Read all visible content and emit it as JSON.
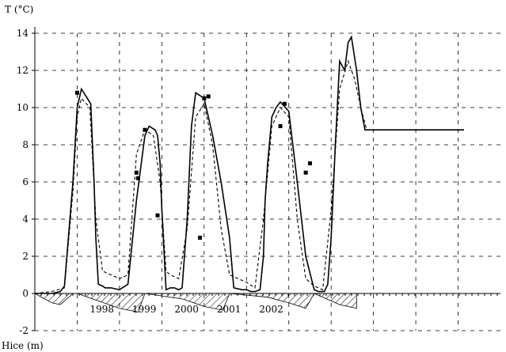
{
  "chart_data": {
    "type": "line",
    "title": "",
    "ylabel": "T  (°C)",
    "xlabel": "",
    "secondary_ylabel": "Hice (m)",
    "ylim": [
      -2,
      14
    ],
    "xlim": [
      1997.0,
      2002.5
    ],
    "yticks": [
      -2,
      0,
      2,
      4,
      6,
      8,
      10,
      12,
      14
    ],
    "ytick_labels": [
      "-2",
      "0",
      "2",
      "4",
      "6",
      "8",
      "10",
      "12",
      "14"
    ],
    "x_tick_labels": [
      "1998",
      "1999",
      "2000",
      "2001",
      "2002"
    ],
    "grid": true,
    "legend": "none",
    "series": [
      {
        "style": "solid",
        "x": [
          1997.0,
          1997.1,
          1997.2,
          1997.3,
          1997.35,
          1997.45,
          1997.5,
          1997.55,
          1997.62,
          1997.66,
          1997.7,
          1997.72,
          1997.75,
          1997.8,
          1997.83,
          1997.9,
          1998.0,
          1998.1,
          1998.2,
          1998.3,
          1998.35,
          1998.42,
          1998.45,
          1998.48,
          1998.5,
          1998.55,
          1998.6,
          1998.65,
          1998.7,
          1998.74,
          1998.8,
          1998.85,
          1998.9,
          1999.0,
          1999.1,
          1999.2,
          1999.3,
          1999.35,
          1999.45,
          1999.5,
          1999.55,
          1999.6,
          1999.66,
          1999.7,
          1999.72,
          1999.75,
          1999.8,
          1999.85,
          1999.9,
          2000.0,
          2000.1,
          2000.2,
          2000.3,
          2000.35,
          2000.42,
          2000.46,
          2000.5,
          2000.55,
          2000.6,
          2000.66,
          2000.7,
          2000.74,
          2000.8,
          2000.85,
          2000.9,
          2001.0,
          2001.1,
          2001.2,
          2001.3,
          2001.35,
          2001.45,
          2001.5,
          2001.55,
          2001.6,
          2001.66,
          2001.7,
          2001.74,
          2001.8,
          2001.85,
          2001.9,
          2002.0,
          2002.07
        ],
        "y": [
          0.0,
          0.0,
          0.0,
          0.1,
          0.4,
          6.0,
          10.0,
          11.0,
          10.5,
          10.2,
          6.0,
          3.0,
          0.5,
          0.4,
          0.3,
          0.3,
          0.2,
          0.5,
          5.0,
          8.5,
          9.0,
          8.8,
          8.5,
          7.0,
          4.5,
          0.2,
          0.3,
          0.3,
          0.2,
          0.3,
          4.0,
          9.0,
          10.8,
          10.5,
          8.5,
          6.0,
          3.0,
          0.3,
          0.2,
          0.2,
          0.1,
          0.1,
          0.2,
          2.0,
          5.0,
          7.0,
          9.5,
          10.0,
          10.3,
          9.8,
          6.0,
          2.0,
          0.2,
          0.1,
          0.1,
          0.5,
          3.0,
          8.0,
          12.5,
          12.0,
          13.5,
          13.8,
          12.0,
          10.0,
          8.8,
          8.8,
          8.8,
          8.8,
          8.8,
          8.8,
          8.8,
          8.8,
          8.8,
          8.8,
          8.8,
          8.8,
          8.8,
          8.8,
          8.8,
          8.8,
          8.8,
          8.8
        ]
      },
      {
        "style": "dashed",
        "x": [
          1997.0,
          1997.2,
          1997.35,
          1997.45,
          1997.5,
          1997.55,
          1997.65,
          1997.72,
          1997.8,
          1997.9,
          1998.0,
          1998.1,
          1998.2,
          1998.3,
          1998.4,
          1998.48,
          1998.55,
          1998.6,
          1998.7,
          1998.8,
          1998.9,
          1999.0,
          1999.1,
          1999.2,
          1999.3,
          1999.4,
          1999.5,
          1999.6,
          1999.7,
          1999.8,
          1999.9,
          2000.0,
          2000.1,
          2000.2,
          2000.3,
          2000.4,
          2000.5,
          2000.6,
          2000.7,
          2000.78,
          2000.85,
          2000.92
        ],
        "y": [
          0.0,
          0.1,
          0.3,
          5.5,
          9.5,
          10.5,
          10.0,
          4.0,
          1.2,
          1.0,
          0.8,
          1.0,
          7.5,
          8.8,
          8.5,
          6.0,
          1.2,
          1.0,
          0.8,
          3.5,
          9.5,
          10.2,
          8.0,
          3.5,
          1.0,
          0.8,
          0.6,
          0.3,
          4.0,
          9.0,
          10.0,
          9.5,
          4.0,
          0.8,
          0.4,
          0.2,
          4.5,
          11.0,
          12.5,
          11.5,
          10.0,
          8.8
        ]
      },
      {
        "style": "markers",
        "x": [
          1997.5,
          1998.2,
          1998.22,
          1998.3,
          1998.45,
          1998.95,
          1999.0,
          1999.05,
          1999.9,
          1999.95,
          2000.2,
          2000.25
        ],
        "y": [
          10.8,
          6.5,
          6.2,
          8.8,
          4.2,
          3.0,
          10.5,
          10.6,
          9.0,
          10.2,
          6.5,
          7.0
        ]
      },
      {
        "name": "Hice (m)",
        "style": "hatched-area",
        "x": [
          1997.0,
          1997.2,
          1997.3,
          1997.45,
          1997.5,
          1997.75,
          1998.0,
          1998.22,
          1998.3,
          1998.75,
          1999.0,
          1999.22,
          1999.3,
          1999.75,
          2000.0,
          2000.2,
          2000.3,
          2000.6,
          2000.8
        ],
        "y": [
          0.0,
          -0.5,
          -0.6,
          0.0,
          0.0,
          -0.4,
          -0.8,
          -1.0,
          0.0,
          -0.3,
          -0.7,
          -0.9,
          0.0,
          -0.2,
          -0.5,
          -0.8,
          0.0,
          -0.6,
          -0.8
        ]
      }
    ]
  }
}
